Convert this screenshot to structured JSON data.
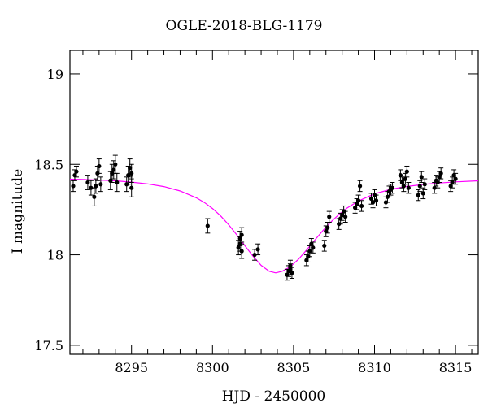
{
  "chart_data": {
    "type": "scatter",
    "title": "OGLE-2018-BLG-1179",
    "xlabel": "HJD - 2450000",
    "ylabel": "I magnitude",
    "xlim": [
      8291.2,
      8316.4
    ],
    "ylim": [
      19.13,
      17.45
    ],
    "y_inverted": true,
    "xticks": [
      8295,
      8300,
      8305,
      8310,
      8315
    ],
    "yticks": [
      17.5,
      18,
      18.5,
      19
    ],
    "ytick_labels": [
      "17.5",
      "18",
      "18.5",
      "19"
    ],
    "grid": false,
    "colors": {
      "data": "#000000",
      "model": "#ff00ff"
    },
    "model": {
      "description_hidden": true,
      "baseline": 18.42,
      "peak": 17.9,
      "t0": 8303.9,
      "tE": 3.0,
      "x": [
        8291.2,
        8292,
        8293,
        8294,
        8295,
        8296,
        8297,
        8298,
        8299,
        8299.5,
        8300,
        8300.5,
        8301,
        8301.5,
        8302,
        8302.5,
        8303,
        8303.5,
        8303.9,
        8304.3,
        8304.8,
        8305.3,
        8305.8,
        8306.3,
        8306.8,
        8307.3,
        8307.8,
        8308.3,
        8309,
        8310,
        8311,
        8312,
        8313,
        8314,
        8315,
        8316.4
      ],
      "y": [
        18.418,
        18.416,
        18.413,
        18.409,
        18.402,
        18.392,
        18.377,
        18.353,
        18.315,
        18.289,
        18.256,
        18.215,
        18.166,
        18.11,
        18.05,
        17.992,
        17.942,
        17.909,
        17.9,
        17.909,
        17.934,
        17.975,
        18.026,
        18.08,
        18.133,
        18.181,
        18.223,
        18.258,
        18.297,
        18.337,
        18.362,
        18.378,
        18.389,
        18.397,
        18.403,
        18.409
      ]
    },
    "points": [
      {
        "x": 8291.4,
        "y": 18.38,
        "e": 0.03
      },
      {
        "x": 8291.5,
        "y": 18.44,
        "e": 0.03
      },
      {
        "x": 8291.6,
        "y": 18.46,
        "e": 0.03
      },
      {
        "x": 8292.3,
        "y": 18.4,
        "e": 0.04
      },
      {
        "x": 8292.5,
        "y": 18.37,
        "e": 0.04
      },
      {
        "x": 8292.7,
        "y": 18.32,
        "e": 0.05
      },
      {
        "x": 8292.8,
        "y": 18.38,
        "e": 0.04
      },
      {
        "x": 8292.9,
        "y": 18.45,
        "e": 0.04
      },
      {
        "x": 8293.0,
        "y": 18.49,
        "e": 0.04
      },
      {
        "x": 8293.1,
        "y": 18.39,
        "e": 0.04
      },
      {
        "x": 8293.7,
        "y": 18.41,
        "e": 0.05
      },
      {
        "x": 8293.8,
        "y": 18.45,
        "e": 0.05
      },
      {
        "x": 8293.9,
        "y": 18.47,
        "e": 0.05
      },
      {
        "x": 8294.0,
        "y": 18.5,
        "e": 0.05
      },
      {
        "x": 8294.1,
        "y": 18.4,
        "e": 0.05
      },
      {
        "x": 8294.7,
        "y": 18.39,
        "e": 0.04
      },
      {
        "x": 8294.8,
        "y": 18.44,
        "e": 0.05
      },
      {
        "x": 8294.9,
        "y": 18.48,
        "e": 0.05
      },
      {
        "x": 8295.0,
        "y": 18.37,
        "e": 0.05
      },
      {
        "x": 8295.0,
        "y": 18.45,
        "e": 0.05
      },
      {
        "x": 8299.7,
        "y": 18.16,
        "e": 0.04
      },
      {
        "x": 8301.6,
        "y": 18.04,
        "e": 0.04
      },
      {
        "x": 8301.7,
        "y": 18.06,
        "e": 0.04
      },
      {
        "x": 8301.7,
        "y": 18.09,
        "e": 0.04
      },
      {
        "x": 8301.8,
        "y": 18.02,
        "e": 0.04
      },
      {
        "x": 8301.8,
        "y": 18.11,
        "e": 0.04
      },
      {
        "x": 8302.6,
        "y": 18.0,
        "e": 0.03
      },
      {
        "x": 8302.8,
        "y": 18.03,
        "e": 0.03
      },
      {
        "x": 8304.6,
        "y": 17.89,
        "e": 0.03
      },
      {
        "x": 8304.7,
        "y": 17.91,
        "e": 0.03
      },
      {
        "x": 8304.8,
        "y": 17.92,
        "e": 0.03
      },
      {
        "x": 8304.8,
        "y": 17.94,
        "e": 0.03
      },
      {
        "x": 8304.9,
        "y": 17.9,
        "e": 0.03
      },
      {
        "x": 8305.8,
        "y": 17.97,
        "e": 0.03
      },
      {
        "x": 8305.9,
        "y": 17.99,
        "e": 0.03
      },
      {
        "x": 8306.0,
        "y": 18.02,
        "e": 0.03
      },
      {
        "x": 8306.1,
        "y": 18.06,
        "e": 0.03
      },
      {
        "x": 8306.2,
        "y": 18.04,
        "e": 0.03
      },
      {
        "x": 8306.9,
        "y": 18.05,
        "e": 0.03
      },
      {
        "x": 8307.0,
        "y": 18.13,
        "e": 0.03
      },
      {
        "x": 8307.1,
        "y": 18.15,
        "e": 0.03
      },
      {
        "x": 8307.2,
        "y": 18.21,
        "e": 0.03
      },
      {
        "x": 8307.8,
        "y": 18.17,
        "e": 0.03
      },
      {
        "x": 8307.9,
        "y": 18.2,
        "e": 0.03
      },
      {
        "x": 8308.0,
        "y": 18.22,
        "e": 0.03
      },
      {
        "x": 8308.1,
        "y": 18.24,
        "e": 0.03
      },
      {
        "x": 8308.2,
        "y": 18.21,
        "e": 0.03
      },
      {
        "x": 8308.8,
        "y": 18.26,
        "e": 0.03
      },
      {
        "x": 8308.9,
        "y": 18.28,
        "e": 0.03
      },
      {
        "x": 8309.0,
        "y": 18.3,
        "e": 0.03
      },
      {
        "x": 8309.1,
        "y": 18.38,
        "e": 0.03
      },
      {
        "x": 8309.2,
        "y": 18.27,
        "e": 0.03
      },
      {
        "x": 8309.8,
        "y": 18.31,
        "e": 0.03
      },
      {
        "x": 8309.9,
        "y": 18.29,
        "e": 0.03
      },
      {
        "x": 8310.0,
        "y": 18.33,
        "e": 0.03
      },
      {
        "x": 8310.1,
        "y": 18.3,
        "e": 0.03
      },
      {
        "x": 8310.7,
        "y": 18.29,
        "e": 0.03
      },
      {
        "x": 8310.8,
        "y": 18.32,
        "e": 0.03
      },
      {
        "x": 8310.9,
        "y": 18.35,
        "e": 0.03
      },
      {
        "x": 8311.0,
        "y": 18.36,
        "e": 0.03
      },
      {
        "x": 8311.1,
        "y": 18.37,
        "e": 0.03
      },
      {
        "x": 8311.6,
        "y": 18.44,
        "e": 0.03
      },
      {
        "x": 8311.7,
        "y": 18.4,
        "e": 0.03
      },
      {
        "x": 8311.8,
        "y": 18.38,
        "e": 0.03
      },
      {
        "x": 8311.9,
        "y": 18.42,
        "e": 0.03
      },
      {
        "x": 8312.0,
        "y": 18.46,
        "e": 0.03
      },
      {
        "x": 8312.1,
        "y": 18.37,
        "e": 0.03
      },
      {
        "x": 8312.7,
        "y": 18.33,
        "e": 0.03
      },
      {
        "x": 8312.8,
        "y": 18.38,
        "e": 0.03
      },
      {
        "x": 8312.9,
        "y": 18.43,
        "e": 0.03
      },
      {
        "x": 8313.0,
        "y": 18.34,
        "e": 0.03
      },
      {
        "x": 8313.1,
        "y": 18.39,
        "e": 0.03
      },
      {
        "x": 8313.7,
        "y": 18.37,
        "e": 0.03
      },
      {
        "x": 8313.8,
        "y": 18.41,
        "e": 0.03
      },
      {
        "x": 8313.9,
        "y": 18.4,
        "e": 0.03
      },
      {
        "x": 8314.0,
        "y": 18.43,
        "e": 0.03
      },
      {
        "x": 8314.1,
        "y": 18.45,
        "e": 0.03
      },
      {
        "x": 8314.7,
        "y": 18.38,
        "e": 0.03
      },
      {
        "x": 8314.8,
        "y": 18.4,
        "e": 0.03
      },
      {
        "x": 8314.9,
        "y": 18.44,
        "e": 0.03
      },
      {
        "x": 8315.0,
        "y": 18.42,
        "e": 0.03
      }
    ]
  }
}
